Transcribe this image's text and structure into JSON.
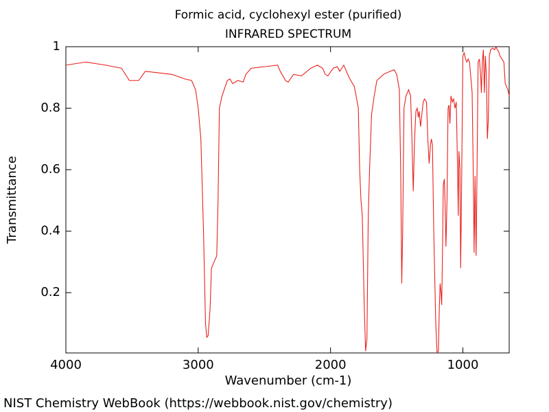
{
  "chart_data": {
    "type": "line",
    "title": "Formic acid, cyclohexyl ester (purified)",
    "subtitle": "INFRARED SPECTRUM",
    "x_label": "Wavenumber (cm-1)",
    "y_label": "Transmittance",
    "source": "NIST Chemistry WebBook (https://webbook.nist.gov/chemistry)",
    "color": "#e8201c",
    "xlim": [
      4000,
      650
    ],
    "ylim": [
      0.004,
      1
    ],
    "xticks": [
      4000,
      3000,
      2000,
      1000
    ],
    "yticks": [
      0.2,
      0.4,
      0.6,
      0.8,
      1
    ],
    "x": [
      4000,
      3850,
      3700,
      3580,
      3520,
      3450,
      3400,
      3300,
      3200,
      3100,
      3050,
      3020,
      3000,
      2980,
      2960,
      2945,
      2935,
      2925,
      2910,
      2900,
      2880,
      2860,
      2850,
      2840,
      2820,
      2780,
      2760,
      2740,
      2700,
      2660,
      2640,
      2600,
      2500,
      2400,
      2380,
      2340,
      2320,
      2280,
      2220,
      2150,
      2100,
      2060,
      2040,
      2020,
      1980,
      1950,
      1930,
      1900,
      1860,
      1820,
      1790,
      1780,
      1770,
      1760,
      1745,
      1735,
      1725,
      1715,
      1705,
      1690,
      1670,
      1650,
      1600,
      1550,
      1520,
      1500,
      1480,
      1470,
      1462,
      1455,
      1445,
      1430,
      1410,
      1395,
      1385,
      1375,
      1365,
      1355,
      1345,
      1337,
      1330,
      1320,
      1310,
      1300,
      1290,
      1275,
      1265,
      1255,
      1245,
      1238,
      1230,
      1220,
      1205,
      1195,
      1185,
      1178,
      1172,
      1165,
      1160,
      1155,
      1148,
      1140,
      1135,
      1128,
      1120,
      1112,
      1105,
      1098,
      1090,
      1080,
      1070,
      1060,
      1050,
      1040,
      1035,
      1030,
      1022,
      1017,
      1012,
      1000,
      990,
      980,
      970,
      960,
      950,
      940,
      930,
      922,
      915,
      908,
      900,
      893,
      885,
      875,
      865,
      860,
      853,
      845,
      838,
      830,
      822,
      815,
      808,
      800,
      790,
      775,
      760,
      750,
      740,
      730,
      720,
      705,
      690,
      680,
      670,
      660,
      650
    ],
    "values": [
      0.94,
      0.95,
      0.94,
      0.93,
      0.89,
      0.89,
      0.92,
      0.915,
      0.91,
      0.895,
      0.89,
      0.86,
      0.8,
      0.7,
      0.4,
      0.1,
      0.055,
      0.06,
      0.15,
      0.28,
      0.3,
      0.32,
      0.5,
      0.8,
      0.84,
      0.89,
      0.895,
      0.88,
      0.89,
      0.885,
      0.91,
      0.93,
      0.935,
      0.94,
      0.92,
      0.89,
      0.885,
      0.91,
      0.905,
      0.93,
      0.94,
      0.93,
      0.91,
      0.905,
      0.93,
      0.935,
      0.92,
      0.94,
      0.9,
      0.87,
      0.8,
      0.6,
      0.5,
      0.45,
      0.15,
      0.01,
      0.05,
      0.45,
      0.6,
      0.78,
      0.84,
      0.89,
      0.91,
      0.92,
      0.925,
      0.91,
      0.86,
      0.6,
      0.23,
      0.4,
      0.8,
      0.84,
      0.86,
      0.84,
      0.7,
      0.53,
      0.7,
      0.79,
      0.8,
      0.77,
      0.79,
      0.74,
      0.78,
      0.82,
      0.83,
      0.82,
      0.7,
      0.62,
      0.68,
      0.7,
      0.68,
      0.4,
      0.1,
      0.005,
      0.01,
      0.15,
      0.23,
      0.2,
      0.16,
      0.3,
      0.55,
      0.57,
      0.5,
      0.35,
      0.5,
      0.8,
      0.81,
      0.75,
      0.84,
      0.82,
      0.83,
      0.8,
      0.82,
      0.6,
      0.45,
      0.66,
      0.6,
      0.28,
      0.45,
      0.97,
      0.98,
      0.96,
      0.95,
      0.96,
      0.95,
      0.9,
      0.85,
      0.6,
      0.33,
      0.58,
      0.32,
      0.6,
      0.95,
      0.96,
      0.9,
      0.85,
      0.95,
      0.99,
      0.85,
      0.97,
      0.9,
      0.7,
      0.76,
      0.97,
      0.99,
      0.995,
      0.99,
      1.0,
      0.99,
      0.985,
      0.97,
      0.96,
      0.95,
      0.88,
      0.87,
      0.86,
      0.84
    ]
  }
}
